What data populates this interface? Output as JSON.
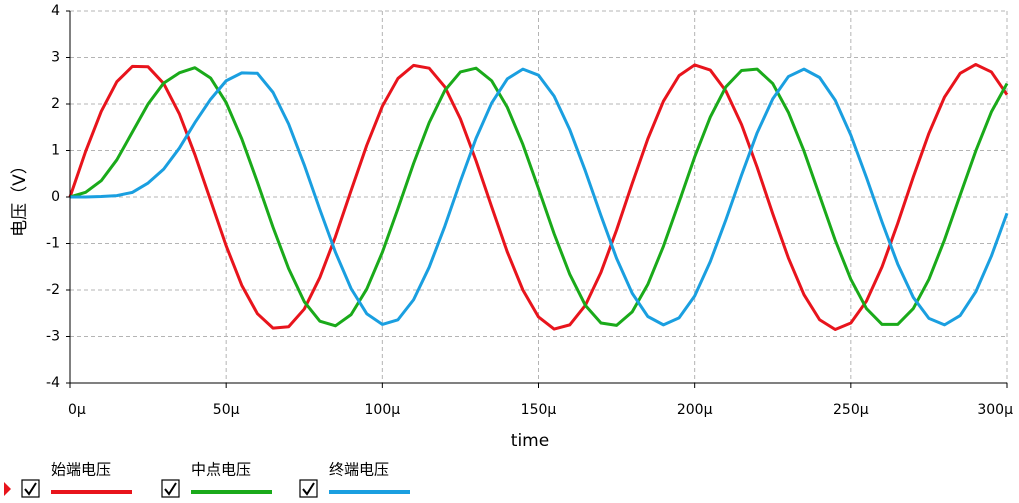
{
  "chart_data": {
    "type": "line",
    "xlabel": "time",
    "ylabel": "电压（V）",
    "x": [
      0,
      5,
      10,
      15,
      20,
      25,
      30,
      35,
      40,
      45,
      50,
      55,
      60,
      65,
      70,
      75,
      80,
      85,
      90,
      95,
      100,
      105,
      110,
      115,
      120,
      125,
      130,
      135,
      140,
      145,
      150,
      155,
      160,
      165,
      170,
      175,
      180,
      185,
      190,
      195,
      200,
      205,
      210,
      215,
      220,
      225,
      230,
      235,
      240,
      245,
      250,
      255,
      260,
      265,
      270,
      275,
      280,
      285,
      290,
      295,
      300
    ],
    "series": [
      {
        "name": "始端电压",
        "color": "#e8141c",
        "values": [
          0,
          0.98,
          1.84,
          2.48,
          2.81,
          2.8,
          2.44,
          1.79,
          0.91,
          -0.07,
          -1.05,
          -1.9,
          -2.51,
          -2.82,
          -2.79,
          -2.41,
          -1.73,
          -0.85,
          0.14,
          1.11,
          1.95,
          2.55,
          2.83,
          2.77,
          2.37,
          1.68,
          0.78,
          -0.21,
          -1.18,
          -2.0,
          -2.58,
          -2.84,
          -2.75,
          -2.33,
          -1.62,
          -0.71,
          0.29,
          1.25,
          2.06,
          2.61,
          2.84,
          2.73,
          2.28,
          1.56,
          0.64,
          -0.36,
          -1.31,
          -2.1,
          -2.64,
          -2.85,
          -2.71,
          -2.24,
          -1.5,
          -0.57,
          0.43,
          1.37,
          2.15,
          2.66,
          2.85,
          2.69,
          2.2
        ]
      },
      {
        "name": "中点电压",
        "color": "#1aaa1a",
        "values": [
          0,
          0.1,
          0.35,
          0.8,
          1.4,
          2.0,
          2.45,
          2.67,
          2.78,
          2.56,
          2.03,
          1.25,
          0.32,
          -0.65,
          -1.54,
          -2.25,
          -2.67,
          -2.77,
          -2.53,
          -1.98,
          -1.19,
          -0.25,
          0.72,
          1.6,
          2.29,
          2.69,
          2.77,
          2.5,
          1.93,
          1.13,
          0.18,
          -0.79,
          -1.66,
          -2.33,
          -2.71,
          -2.76,
          -2.47,
          -1.88,
          -1.06,
          -0.11,
          0.86,
          1.72,
          2.37,
          2.72,
          2.75,
          2.44,
          1.82,
          0.99,
          0.03,
          -0.93,
          -1.77,
          -2.4,
          -2.74,
          -2.74,
          -2.4,
          -1.77,
          -0.92,
          0.04,
          0.99,
          1.83,
          2.44
        ]
      },
      {
        "name": "终端电压",
        "color": "#1a9fe0",
        "values": [
          0,
          0,
          0.01,
          0.03,
          0.1,
          0.3,
          0.6,
          1.05,
          1.6,
          2.1,
          2.5,
          2.67,
          2.66,
          2.25,
          1.57,
          0.69,
          -0.27,
          -1.19,
          -1.97,
          -2.51,
          -2.74,
          -2.64,
          -2.21,
          -1.51,
          -0.63,
          0.34,
          1.26,
          2.02,
          2.54,
          2.75,
          2.62,
          2.17,
          1.45,
          0.56,
          -0.4,
          -1.32,
          -2.07,
          -2.57,
          -2.75,
          -2.6,
          -2.13,
          -1.39,
          -0.49,
          0.47,
          1.38,
          2.11,
          2.59,
          2.75,
          2.57,
          2.08,
          1.33,
          0.42,
          -0.54,
          -1.44,
          -2.16,
          -2.61,
          -2.75,
          -2.55,
          -2.04,
          -1.27,
          -0.35
        ]
      }
    ],
    "xlim": [
      0,
      300
    ],
    "xticks": [
      {
        "value": 0,
        "label": "0μ"
      },
      {
        "value": 50,
        "label": "50μ"
      },
      {
        "value": 100,
        "label": "100μ"
      },
      {
        "value": 150,
        "label": "150μ"
      },
      {
        "value": 200,
        "label": "200μ"
      },
      {
        "value": 250,
        "label": "250μ"
      },
      {
        "value": 300,
        "label": "300μ"
      }
    ],
    "ylim": [
      -4,
      4
    ],
    "yticks": [
      -4,
      -3,
      -2,
      -1,
      0,
      1,
      2,
      3,
      4
    ],
    "grid": true
  }
}
